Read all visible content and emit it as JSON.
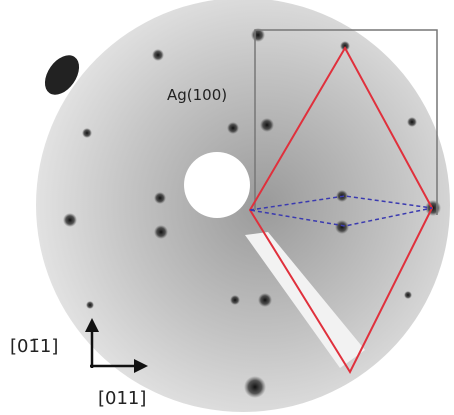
{
  "labels": {
    "surface": "Ag(100)",
    "direction_vertical": "[01̄1]",
    "direction_horizontal": "[011]"
  }
}
